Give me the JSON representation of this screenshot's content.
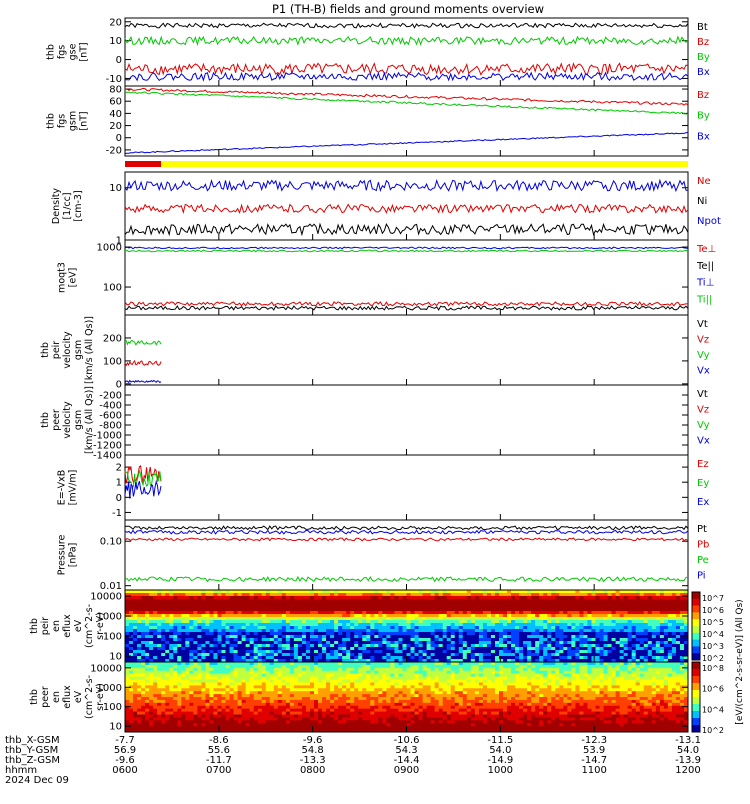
{
  "title": "P1 (TH-B) fields and ground moments overview",
  "colors": {
    "black": "#000000",
    "red": "#e00000",
    "green": "#00c800",
    "blue": "#0000e0",
    "yellow": "#ffff00"
  },
  "chart_data": [
    {
      "type": "line",
      "id": "p1",
      "ylabel": [
        "thb",
        "fgs",
        "gse",
        "[nT]"
      ],
      "ylim": [
        -14,
        22
      ],
      "ticks": [
        -10,
        0,
        10,
        20
      ],
      "series": [
        {
          "name": "Bt",
          "color": "black",
          "level": 18,
          "noise": 1.2
        },
        {
          "name": "Bz",
          "color": "red",
          "level": -5,
          "noise": 3
        },
        {
          "name": "By",
          "color": "green",
          "level": 10,
          "noise": 2
        },
        {
          "name": "Bx",
          "color": "blue",
          "level": -9,
          "noise": 2
        }
      ]
    },
    {
      "type": "line",
      "id": "p2",
      "ylabel": [
        "thb",
        "fgs",
        "gsm",
        "[nT]"
      ],
      "ylim": [
        -30,
        85
      ],
      "ticks": [
        -20,
        0,
        20,
        40,
        60,
        80
      ],
      "series": [
        {
          "name": "Bz",
          "color": "red",
          "start": 80,
          "end": 55,
          "noise": 2
        },
        {
          "name": "By",
          "color": "green",
          "start": 75,
          "end": 40,
          "noise": 1.5
        },
        {
          "name": "Bx",
          "color": "blue",
          "start": -25,
          "end": 8,
          "noise": 1
        }
      ]
    },
    {
      "type": "line",
      "id": "p3",
      "log": true,
      "ylabel": [
        "Density",
        "[1/cc]",
        "[cm-3]"
      ],
      "ylim": [
        1,
        20
      ],
      "ticks": [
        1,
        10
      ],
      "series": [
        {
          "name": "Ne",
          "color": "red",
          "level": 4,
          "noise": 0.08
        },
        {
          "name": "Ni",
          "color": "black",
          "level": 1.6,
          "noise": 0.1
        },
        {
          "name": "Npot",
          "color": "blue",
          "level": 11,
          "noise": 0.1
        }
      ]
    },
    {
      "type": "line",
      "id": "p4",
      "log": true,
      "ylabel": [
        "moqt3",
        "[eV]"
      ],
      "ylim": [
        20,
        1500
      ],
      "ticks": [
        100,
        1000
      ],
      "series": [
        {
          "name": "Te⊥",
          "color": "red",
          "level": 38,
          "noise": 0.05
        },
        {
          "name": "Te||",
          "color": "black",
          "level": 30,
          "noise": 0.05
        },
        {
          "name": "Ti⊥",
          "color": "blue",
          "level": 950,
          "noise": 0.02
        },
        {
          "name": "Ti||",
          "color": "green",
          "level": 800,
          "noise": 0.02
        }
      ]
    },
    {
      "type": "line",
      "id": "p5",
      "ylabel": [
        "thb",
        "peir",
        "velocity",
        "gsm",
        "[km/s (All Qs)]"
      ],
      "ylim": [
        -5,
        300
      ],
      "ticks": [
        0,
        100,
        200
      ],
      "series": [
        {
          "name": "Vt",
          "color": "black",
          "level": 0,
          "noise": 0
        },
        {
          "name": "Vz",
          "color": "red",
          "level": 90,
          "noise": 10
        },
        {
          "name": "Vy",
          "color": "green",
          "level": 180,
          "noise": 10
        },
        {
          "name": "Vx",
          "color": "blue",
          "level": 10,
          "noise": 5
        }
      ]
    },
    {
      "type": "line",
      "id": "p6",
      "ylabel": [
        "thb",
        "peer",
        "velocity",
        "gsm",
        "[km/s (All Qs)]"
      ],
      "ylim": [
        -1400,
        0
      ],
      "ticks": [
        -1400,
        -1200,
        -1000,
        -800,
        -600,
        -400,
        -200
      ],
      "series": [
        {
          "name": "Vt",
          "color": "black",
          "level": 0,
          "noise": 0
        },
        {
          "name": "Vz",
          "color": "red",
          "level": 0,
          "noise": 0
        },
        {
          "name": "Vy",
          "color": "green",
          "level": 0,
          "noise": 0
        },
        {
          "name": "Vx",
          "color": "blue",
          "level": 0,
          "noise": 0
        }
      ]
    },
    {
      "type": "line",
      "id": "p7",
      "ylabel": [
        "E=-VxB",
        "[mV/m]"
      ],
      "ylim": [
        -1.5,
        2.8
      ],
      "ticks": [
        -1,
        0,
        1,
        2
      ],
      "series": [
        {
          "name": "Ez",
          "color": "red",
          "level": 1.5,
          "noise": 0.6
        },
        {
          "name": "Ey",
          "color": "green",
          "level": 1.2,
          "noise": 0.6
        },
        {
          "name": "Ex",
          "color": "blue",
          "level": 0.5,
          "noise": 0.6
        }
      ]
    },
    {
      "type": "line",
      "id": "p8",
      "log": true,
      "ylabel": [
        "Pressure",
        "[nPa]"
      ],
      "ylim": [
        0.008,
        0.3
      ],
      "ticks": [
        0.01,
        0.1
      ],
      "tick_labels": [
        "0.01",
        "0.10"
      ],
      "series": [
        {
          "name": "Pt",
          "color": "black",
          "level": 0.2,
          "noise": 0.04
        },
        {
          "name": "Pb",
          "color": "red",
          "level": 0.11,
          "noise": 0.03
        },
        {
          "name": "Pe",
          "color": "green",
          "level": 0.014,
          "noise": 0.05
        },
        {
          "name": "Pi",
          "color": "blue",
          "level": 0.16,
          "noise": 0.04
        }
      ]
    },
    {
      "type": "heatmap",
      "id": "p9",
      "log": true,
      "ylabel": [
        "thb",
        "peir",
        "en",
        "eflux",
        "eV",
        "(cm^2-s-",
        "sr-eV)"
      ],
      "ylim": [
        5,
        20000
      ],
      "ticks": [
        10,
        100,
        1000,
        10000
      ]
    },
    {
      "type": "heatmap",
      "id": "p10",
      "log": true,
      "ylabel": [
        "thb",
        "peer",
        "en",
        "eflux",
        "eV",
        "(cm^2-s-",
        "sr-eV)"
      ],
      "ylim": [
        5,
        20000
      ],
      "ticks": [
        10,
        100,
        1000,
        10000
      ]
    }
  ],
  "colorbar": {
    "top_labels": [
      "10^7",
      "10^6",
      "10^5",
      "10^4",
      "10^3",
      "10^2"
    ],
    "bottom_labels": [
      "10^8",
      "10^6",
      "10^4",
      "10^2"
    ],
    "label": "[eV/(cm^2-s-sr-eV)] (All Qs)"
  },
  "xaxis": {
    "times": [
      "0600",
      "0700",
      "0800",
      "0900",
      "1000",
      "1100",
      "1200"
    ],
    "rows": [
      {
        "label": "thb_X-GSM",
        "values": [
          "-7.7",
          "-8.6",
          "-9.6",
          "-10.6",
          "-11.5",
          "-12.3",
          "-13.1"
        ]
      },
      {
        "label": "thb_Y-GSM",
        "values": [
          "56.9",
          "55.6",
          "54.8",
          "54.3",
          "54.0",
          "53.9",
          "54.0"
        ]
      },
      {
        "label": "thb_Z-GSM",
        "values": [
          "-9.6",
          "-11.7",
          "-13.3",
          "-14.4",
          "-14.9",
          "-14.7",
          "-13.9"
        ]
      },
      {
        "label": "hhmm",
        "values": [
          "0600",
          "0700",
          "0800",
          "0900",
          "1000",
          "1100",
          "1200"
        ]
      }
    ],
    "date": "2024 Dec 09"
  }
}
